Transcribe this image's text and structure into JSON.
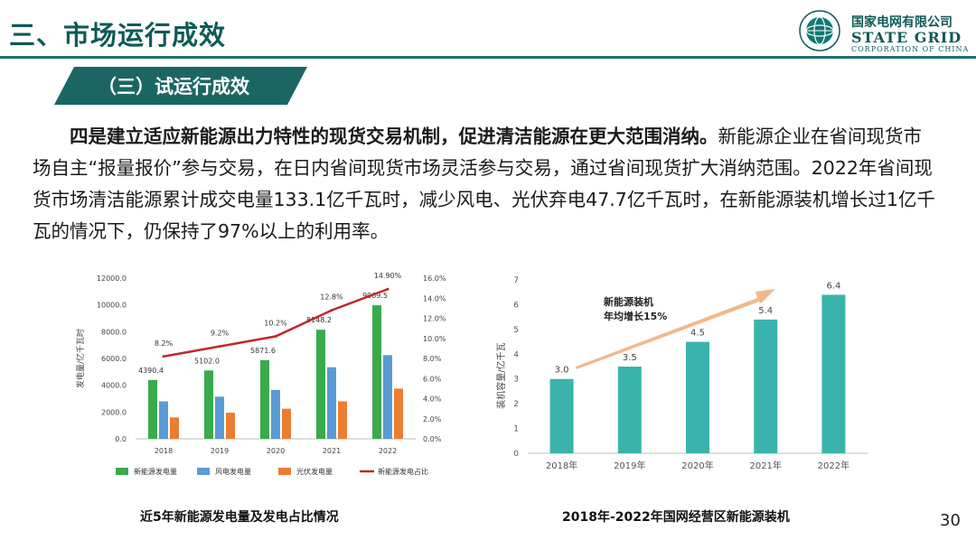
{
  "header": {
    "title": "三、市场运行成效",
    "logo_cn": "国家电网有限公司",
    "logo_en": "STATE GRID",
    "logo_sub": "CORPORATION OF CHINA"
  },
  "section": {
    "banner": "（三）试运行成效"
  },
  "paragraph": {
    "bold": "四是建立适应新能源出力特性的现货交易机制，促进清洁能源在更大范围消纳。",
    "normal": "新能源企业在省间现货市场自主“报量报价”参与交易，在日内省间现货市场灵活参与交易，通过省间现货扩大消纳范围。2022年省间现货市场清洁能源累计成交电量133.1亿千瓦时，减少风电、光伏弃电47.7亿千瓦时，在新能源装机增长过1亿千瓦的情况下，仍保持了97%以上的利用率。"
  },
  "chart_data": [
    {
      "type": "bar",
      "title": "近5年新能源发电量及发电占比情况",
      "categories": [
        "2018",
        "2019",
        "2020",
        "2021",
        "2022"
      ],
      "ylabel": "发电量/亿千瓦时",
      "ylim": [
        0,
        12000
      ],
      "yticks": [
        "0.0",
        "2000.0",
        "4000.0",
        "6000.0",
        "8000.0",
        "10000.0",
        "12000.0"
      ],
      "y2lim": [
        0,
        16
      ],
      "y2ticks": [
        "0.0%",
        "2.0%",
        "4.0%",
        "6.0%",
        "8.0%",
        "10.0%",
        "12.0%",
        "14.0%",
        "16.0%"
      ],
      "series": [
        {
          "name": "新能源发电量",
          "color": "#3aaa4b",
          "values": [
            4390.4,
            5102.0,
            5871.6,
            8148.2,
            9969.5
          ],
          "labels": [
            "4390.4",
            "5102.0",
            "5871.6",
            "8148.2",
            "9969.5"
          ]
        },
        {
          "name": "风电发电量",
          "color": "#5b9bd5",
          "values": [
            2800,
            3150,
            3650,
            5350,
            6250
          ]
        },
        {
          "name": "光伏发电量",
          "color": "#ed7d31",
          "values": [
            1600,
            1950,
            2250,
            2800,
            3750
          ]
        }
      ],
      "line_series": {
        "name": "新能源发电占比",
        "color": "#c0272d",
        "values": [
          8.2,
          9.2,
          10.2,
          12.8,
          14.9
        ],
        "labels": [
          "8.2%",
          "9.2%",
          "10.2%",
          "12.8%",
          "14.90%"
        ]
      },
      "legend": "bottom",
      "grid": false
    },
    {
      "type": "bar",
      "title": "2018年-2022年国网经营区新能源装机",
      "categories": [
        "2018年",
        "2019年",
        "2020年",
        "2021年",
        "2022年"
      ],
      "ylabel": "装机容量/亿千瓦",
      "ylim": [
        0,
        7
      ],
      "yticks": [
        "0",
        "1",
        "2",
        "3",
        "4",
        "5",
        "6",
        "7"
      ],
      "series": [
        {
          "name": "",
          "color": "#3bb3ad",
          "values": [
            3.0,
            3.5,
            4.5,
            5.4,
            6.4
          ],
          "labels": [
            "3.0",
            "3.5",
            "4.5",
            "5.4",
            "6.4"
          ]
        }
      ],
      "annotation": [
        "新能源装机",
        "年均增长15%"
      ],
      "grid": false
    }
  ],
  "page_number": "30",
  "colors": {
    "brand": "#0f5a57",
    "banner": "#1b6663",
    "arrow": "#f0b98c"
  }
}
